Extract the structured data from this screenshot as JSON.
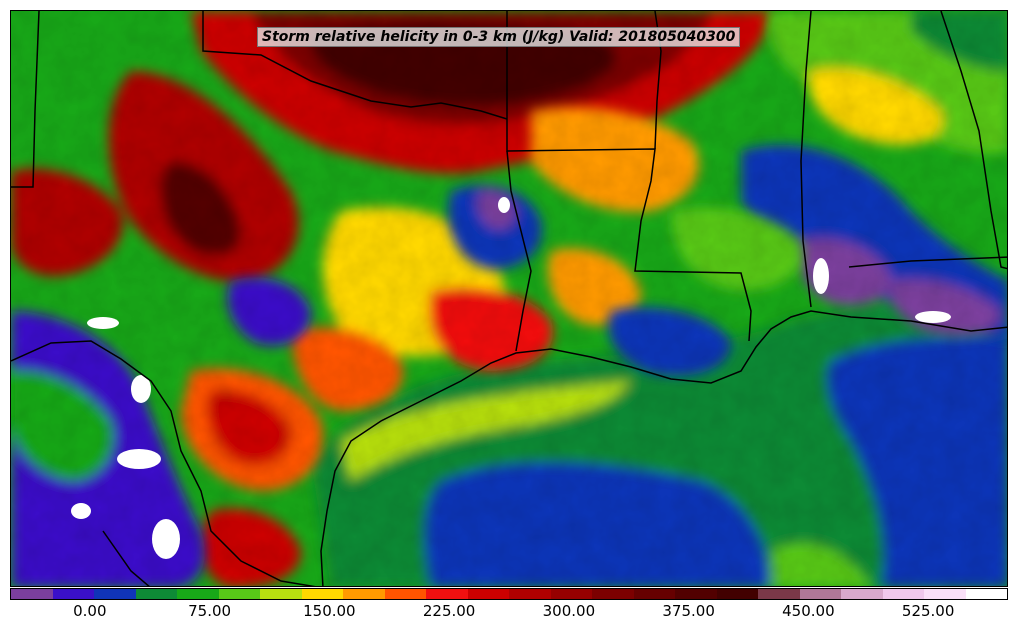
{
  "map": {
    "title": "Storm relative helicity in 0-3 km (J/kg) Valid: 201805040300",
    "field_name": "Storm relative helicity in 0-3 km",
    "units": "J/kg",
    "valid_time": "201805040300",
    "region": "Southern Plains, Lower Mississippi Valley and northwestern Gulf of Mexico",
    "boundaries_shown": [
      "state borders",
      "US-Mexico border",
      "Gulf coastline"
    ]
  },
  "colorbar": {
    "tick_labels": [
      "0.00",
      "75.00",
      "150.00",
      "225.00",
      "300.00",
      "375.00",
      "450.00",
      "525.00"
    ],
    "min": -50,
    "max": 575,
    "step": 25,
    "colors": [
      "#7b3f9e",
      "#3a10c8",
      "#1034b8",
      "#0e8a36",
      "#18a818",
      "#58c818",
      "#b8e010",
      "#ffd800",
      "#ff9a00",
      "#ff5400",
      "#f01010",
      "#cc0000",
      "#b00000",
      "#960000",
      "#7c0000",
      "#660000",
      "#520000",
      "#420000",
      "#7a3848",
      "#b07898",
      "#d8a8cc",
      "#f0c8ec",
      "#fae0f8",
      "#ffffff"
    ]
  },
  "colors": {
    "background": "#ffffff",
    "border_lines": "#000000",
    "title_box": "#ebebeb"
  }
}
